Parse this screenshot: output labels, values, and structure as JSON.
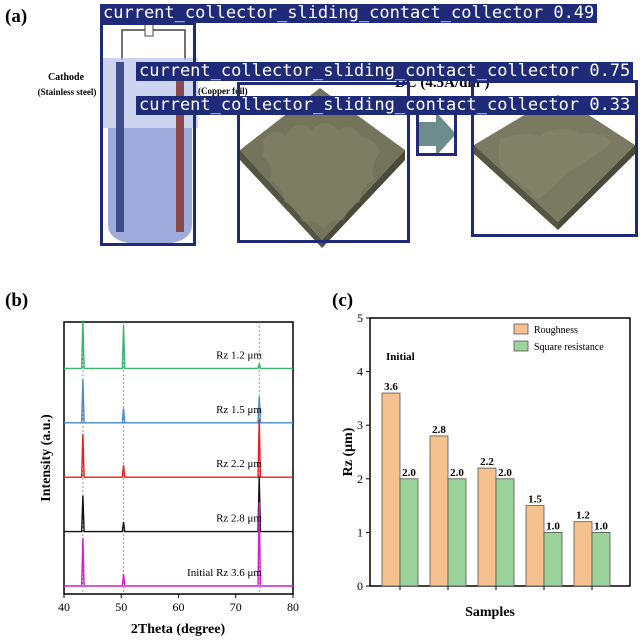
{
  "panels": {
    "a": "(a)",
    "b": "(b)",
    "c": "(c)"
  },
  "panel_a": {
    "cathode_label": "Cathode",
    "cathode_sub": "(Stainless steel)",
    "copper_label": "(Copper foil)",
    "dc_label": "DC (4.5A/dm²)",
    "colors": {
      "box": "#1f2a78",
      "surface": "#6e6d55",
      "surface_dark": "#4a4a38",
      "vessel": "#8e9cd6"
    }
  },
  "detections": [
    {
      "label": "current_collector_sliding_contact_collector 0.49"
    },
    {
      "label": "current_collector_sliding_contact_collector 0.75"
    },
    {
      "label": "current_collector_sliding_contact_collector 0.33"
    }
  ],
  "chart_data": [
    {
      "type": "line",
      "xlabel": "2Theta (degree)",
      "ylabel": "Intensity (a.u.)",
      "xlim": [
        40,
        80
      ],
      "xticks": [
        40,
        50,
        60,
        70,
        80
      ],
      "peaks": [
        43.3,
        50.4,
        74.1
      ],
      "series": [
        {
          "name": "Rz 1.2 μm",
          "color": "#3cb371",
          "peak_heights": [
            1.0,
            0.9,
            0.1
          ]
        },
        {
          "name": "Rz 1.5 μm",
          "color": "#4a86c8",
          "peak_heights": [
            0.9,
            0.3,
            0.55
          ]
        },
        {
          "name": "Rz 2.2 μm",
          "color": "#e02020",
          "peak_heights": [
            0.9,
            0.25,
            1.2
          ]
        },
        {
          "name": "Rz 2.8 μm",
          "color": "#111111",
          "peak_heights": [
            0.75,
            0.2,
            1.15
          ]
        },
        {
          "name": "Initial  Rz 3.6 μm",
          "color": "#cc22cc",
          "peak_heights": [
            1.0,
            0.25,
            1.75
          ]
        }
      ]
    },
    {
      "type": "bar",
      "xlabel": "Samples",
      "ylabel": "Rz (μm)",
      "ylim": [
        0,
        5
      ],
      "yticks": [
        0,
        1,
        2,
        3,
        4,
        5
      ],
      "annotation": "Initial",
      "legend_position": "top-right",
      "categories": [
        "",
        "",
        "",
        "",
        ""
      ],
      "series": [
        {
          "name": "Roughness",
          "color": "#f6c08f",
          "values": [
            3.6,
            2.8,
            2.2,
            1.5,
            1.2
          ],
          "labels": [
            "3.6",
            "2.8",
            "2.2",
            "1.5",
            "1.2"
          ]
        },
        {
          "name": "Square resistance",
          "color": "#9ad49a",
          "values": [
            2.0,
            2.0,
            2.0,
            1.0,
            1.0
          ],
          "labels": [
            "2.0",
            "2.0",
            "2.0",
            "1.0",
            "1.0"
          ]
        }
      ]
    }
  ]
}
